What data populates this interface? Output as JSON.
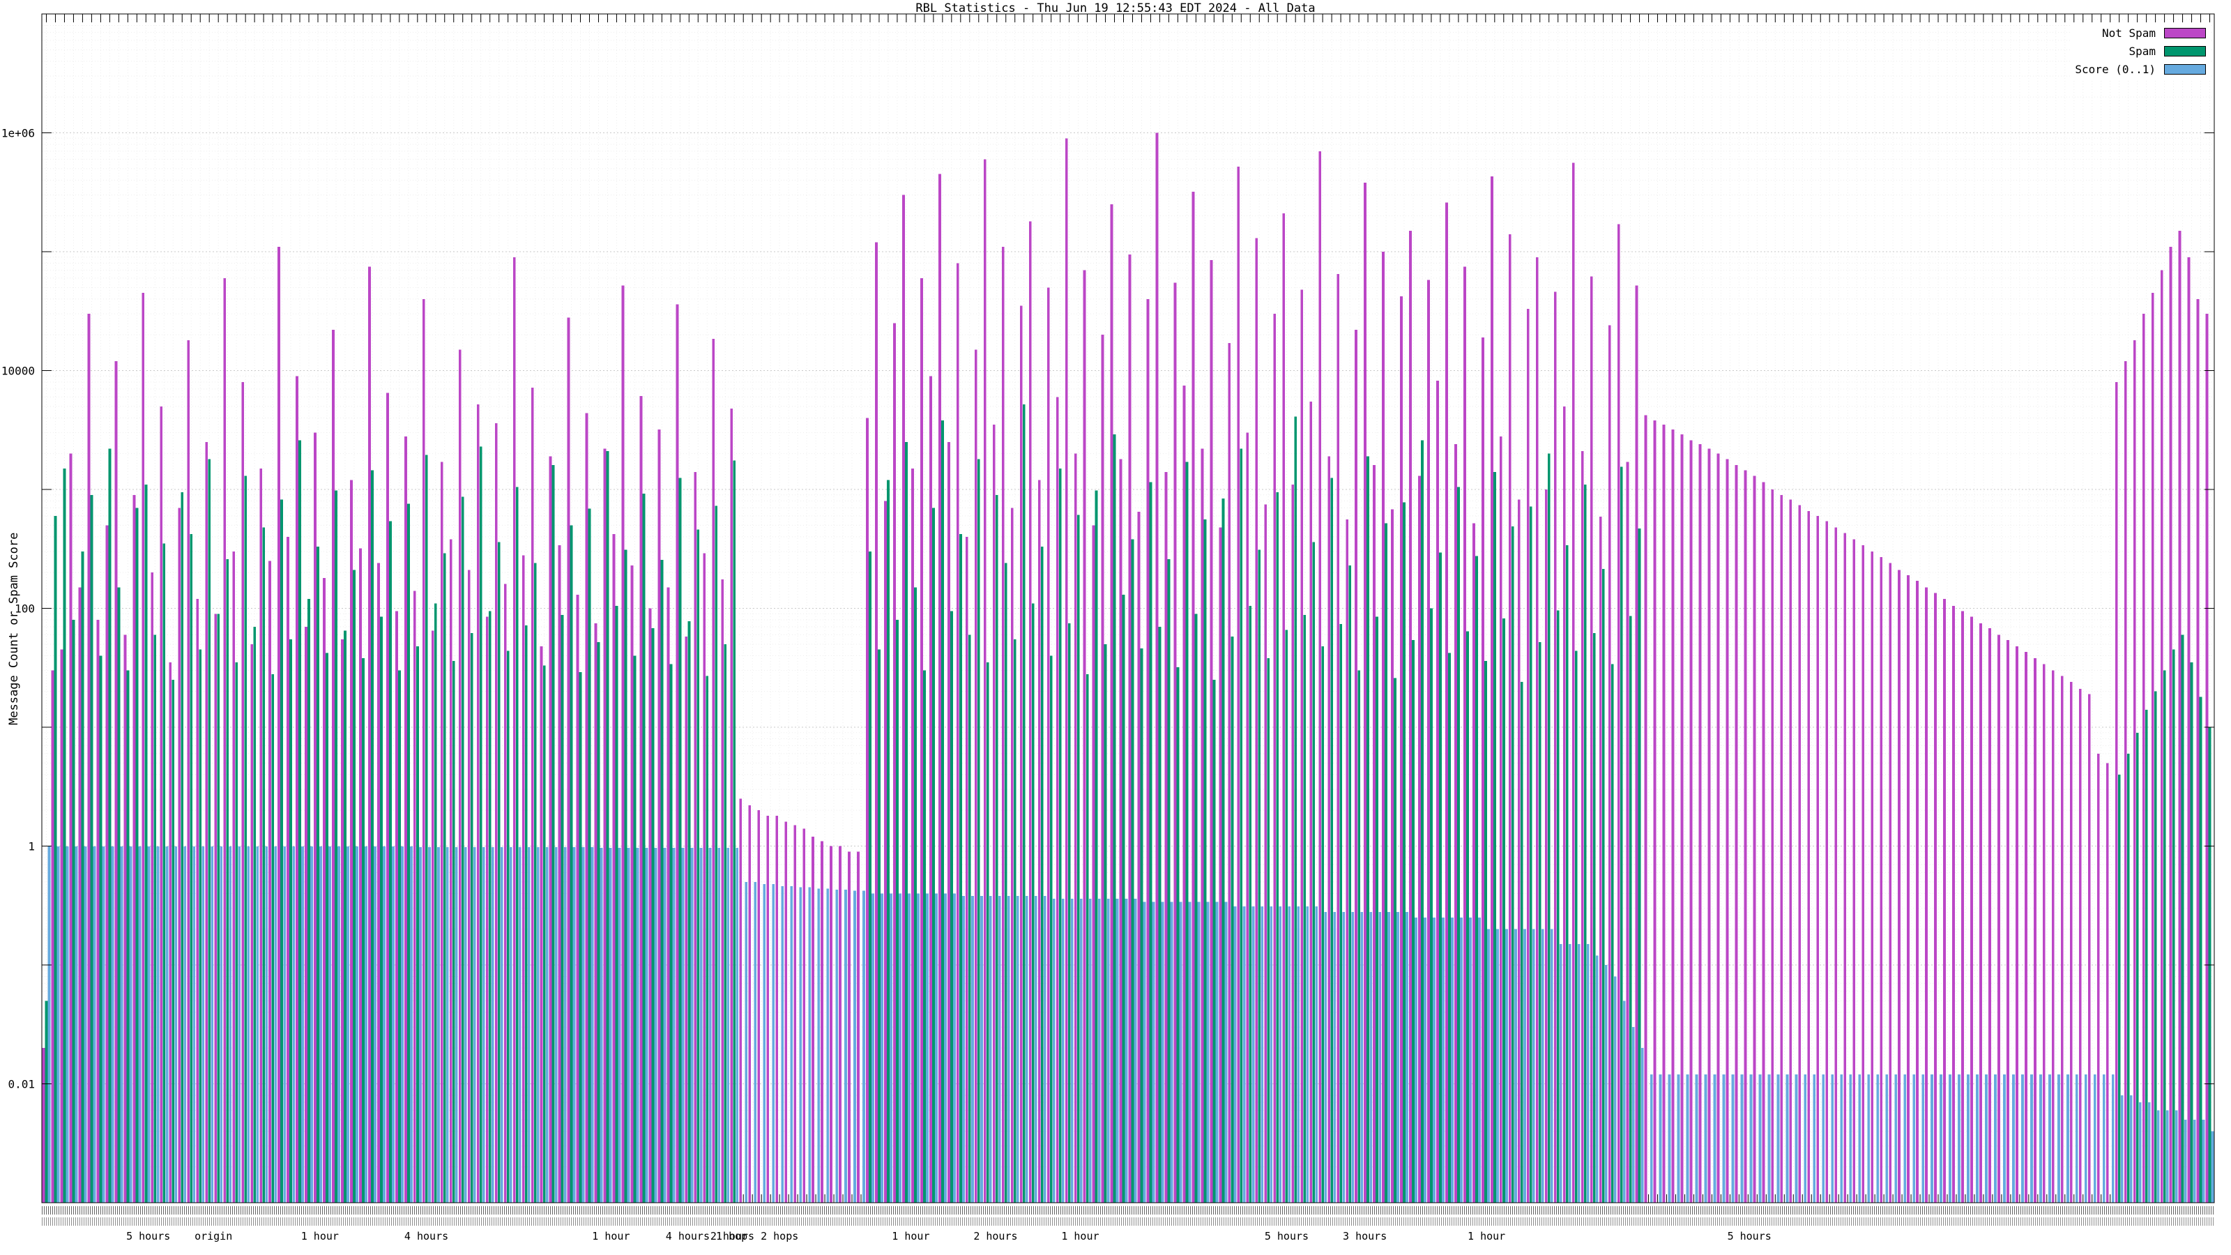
{
  "title": "RBL Statistics - Thu Jun 19 12:55:43 EDT 2024 - All Data",
  "y_axis": {
    "label": "Message Count or Spam Score",
    "ticks": [
      {
        "value": 1000000,
        "label": "1e+06"
      },
      {
        "value": 10000,
        "label": "10000"
      },
      {
        "value": 100,
        "label": "100"
      },
      {
        "value": 1,
        "label": "1"
      },
      {
        "value": 0.01,
        "label": "0.01"
      }
    ]
  },
  "legend": [
    {
      "label": "Not Spam",
      "color": "#bb46c6"
    },
    {
      "label": "Spam",
      "color": "#00966e"
    },
    {
      "label": "Score (0..1)",
      "color": "#66aadf"
    }
  ],
  "chart_data": {
    "type": "bar",
    "y_scale": "log",
    "ylim": [
      0.001,
      10000000
    ],
    "grid": true,
    "legend_position": "top-right",
    "title": "RBL Statistics - Thu Jun 19 12:55:43 EDT 2024 - All Data",
    "ylabel": "Message Count or Spam Score",
    "series": [
      {
        "name": "Not Spam",
        "color": "#bb46c6",
        "values": [
          0.02,
          30,
          45,
          2000,
          150,
          30000,
          80,
          500,
          12000,
          60,
          900,
          45000,
          200,
          5000,
          35,
          700,
          18000,
          120,
          2500,
          90,
          60000,
          300,
          8000,
          50,
          1500,
          250,
          110000,
          400,
          9000,
          70,
          3000,
          180,
          22000,
          55,
          1200,
          320,
          75000,
          240,
          6500,
          95,
          2800,
          140,
          40000,
          65,
          1700,
          380,
          15000,
          210,
          5200,
          85,
          3600,
          160,
          90000,
          280,
          7200,
          48,
          1900,
          340,
          28000,
          130,
          4400,
          75,
          2200,
          420,
          52000,
          230,
          6100,
          100,
          3200,
          150,
          36000,
          58,
          1400,
          290,
          18500,
          175,
          4800,
          2.5,
          2.2,
          2.0,
          1.8,
          1.8,
          1.6,
          1.5,
          1.4,
          1.2,
          1.1,
          1.0,
          1.0,
          0.9,
          0.9,
          4000,
          120000,
          800,
          25000,
          300000,
          1500,
          60000,
          9000,
          450000,
          2500,
          80000,
          400,
          15000,
          600000,
          3500,
          110000,
          700,
          35000,
          180000,
          1200,
          50000,
          6000,
          900000,
          2000,
          70000,
          500,
          20000,
          250000,
          1800,
          95000,
          650,
          40000,
          1000000,
          1400,
          55000,
          7500,
          320000,
          2200,
          85000,
          480,
          17000,
          520000,
          3000,
          130000,
          750,
          30000,
          210000,
          1100,
          48000,
          5500,
          700000,
          1900,
          65000,
          560,
          22000,
          380000,
          1600,
          100000,
          680,
          42000,
          150000,
          1300,
          58000,
          8200,
          260000,
          2400,
          75000,
          520,
          19000,
          430000,
          2800,
          140000,
          820,
          33000,
          90000,
          1000,
          46000,
          5000,
          560000,
          2100,
          62000,
          590,
          24000,
          170000,
          1700,
          52000,
          4200,
          3800,
          3500,
          3200,
          2900,
          2600,
          2400,
          2200,
          2000,
          1800,
          1600,
          1450,
          1300,
          1150,
          1000,
          900,
          820,
          740,
          660,
          600,
          540,
          480,
          430,
          380,
          340,
          300,
          270,
          240,
          210,
          190,
          170,
          150,
          135,
          120,
          105,
          95,
          85,
          75,
          68,
          60,
          54,
          48,
          43,
          38,
          34,
          30,
          27,
          24,
          21,
          19,
          6,
          5,
          8000,
          12000,
          18000,
          30000,
          45000,
          70000,
          110000,
          150000,
          90000,
          40000,
          30000
        ]
      },
      {
        "name": "Spam",
        "color": "#00966e",
        "values": [
          0.05,
          600,
          1500,
          80,
          300,
          900,
          40,
          2200,
          150,
          30,
          700,
          1100,
          60,
          350,
          25,
          950,
          420,
          45,
          1800,
          90,
          260,
          35,
          1300,
          70,
          480,
          28,
          820,
          55,
          2600,
          120,
          330,
          42,
          980,
          65,
          210,
          38,
          1450,
          85,
          540,
          30,
          760,
          48,
          1950,
          110,
          290,
          36,
          870,
          62,
          2300,
          95,
          360,
          44,
          1050,
          72,
          240,
          33,
          1600,
          88,
          500,
          29,
          690,
          52,
          2100,
          105,
          310,
          40,
          920,
          68,
          255,
          34,
          1250,
          78,
          460,
          27,
          730,
          50,
          1750,
          0,
          0,
          0,
          0,
          0,
          0,
          0,
          0,
          0,
          0,
          0,
          0,
          0,
          0,
          300,
          45,
          1200,
          80,
          2500,
          150,
          30,
          700,
          3800,
          95,
          420,
          60,
          1800,
          35,
          900,
          240,
          55,
          5200,
          110,
          330,
          40,
          1500,
          75,
          610,
          28,
          980,
          50,
          2900,
          130,
          380,
          46,
          1150,
          70,
          260,
          32,
          1700,
          90,
          560,
          25,
          840,
          58,
          2200,
          105,
          310,
          38,
          950,
          66,
          4100,
          88,
          360,
          48,
          1250,
          74,
          230,
          30,
          1900,
          85,
          520,
          26,
          780,
          54,
          2600,
          100,
          295,
          42,
          1050,
          64,
          275,
          36,
          1400,
          82,
          490,
          24,
          720,
          52,
          2000,
          96,
          340,
          44,
          1100,
          62,
          215,
          34,
          1550,
          86,
          470,
          0,
          0,
          0,
          0,
          0,
          0,
          0,
          0,
          0,
          0,
          0,
          0,
          0,
          0,
          0,
          0,
          0,
          0,
          0,
          0,
          0,
          0,
          0,
          0,
          0,
          0,
          0,
          0,
          0,
          0,
          0,
          0,
          0,
          0,
          0,
          0,
          0,
          0,
          0,
          0,
          0,
          0,
          0,
          0,
          0,
          0,
          0,
          0,
          0,
          0,
          0,
          0,
          4,
          6,
          9,
          14,
          20,
          30,
          45,
          60,
          35,
          18,
          10
        ]
      },
      {
        "name": "Score (0..1)",
        "color": "#66aadf",
        "values": [
          0.99,
          0.99,
          0.99,
          0.99,
          0.99,
          0.99,
          0.99,
          0.99,
          0.99,
          0.99,
          0.99,
          0.99,
          0.99,
          0.99,
          0.99,
          0.99,
          0.99,
          0.99,
          0.99,
          0.99,
          0.99,
          0.99,
          0.99,
          0.99,
          0.99,
          0.99,
          0.99,
          0.99,
          0.99,
          0.99,
          0.99,
          0.99,
          0.99,
          0.99,
          0.99,
          0.99,
          0.99,
          0.99,
          0.99,
          0.99,
          0.99,
          0.98,
          0.98,
          0.98,
          0.98,
          0.98,
          0.98,
          0.98,
          0.98,
          0.98,
          0.98,
          0.98,
          0.98,
          0.98,
          0.98,
          0.98,
          0.98,
          0.98,
          0.98,
          0.98,
          0.98,
          0.97,
          0.97,
          0.97,
          0.97,
          0.97,
          0.97,
          0.97,
          0.97,
          0.97,
          0.97,
          0.97,
          0.97,
          0.97,
          0.97,
          0.97,
          0.97,
          0.5,
          0.5,
          0.48,
          0.48,
          0.46,
          0.46,
          0.45,
          0.45,
          0.44,
          0.44,
          0.43,
          0.43,
          0.42,
          0.42,
          0.4,
          0.4,
          0.4,
          0.4,
          0.4,
          0.4,
          0.4,
          0.4,
          0.4,
          0.4,
          0.38,
          0.38,
          0.38,
          0.38,
          0.38,
          0.38,
          0.38,
          0.38,
          0.38,
          0.38,
          0.36,
          0.36,
          0.36,
          0.36,
          0.36,
          0.36,
          0.36,
          0.36,
          0.36,
          0.36,
          0.34,
          0.34,
          0.34,
          0.34,
          0.34,
          0.34,
          0.34,
          0.34,
          0.34,
          0.34,
          0.31,
          0.31,
          0.31,
          0.31,
          0.31,
          0.31,
          0.31,
          0.31,
          0.31,
          0.31,
          0.28,
          0.28,
          0.28,
          0.28,
          0.28,
          0.28,
          0.28,
          0.28,
          0.28,
          0.28,
          0.25,
          0.25,
          0.25,
          0.25,
          0.25,
          0.25,
          0.25,
          0.25,
          0.2,
          0.2,
          0.2,
          0.2,
          0.2,
          0.2,
          0.2,
          0.2,
          0.15,
          0.15,
          0.15,
          0.15,
          0.12,
          0.1,
          0.08,
          0.05,
          0.03,
          0.02,
          0.012,
          0.012,
          0.012,
          0.012,
          0.012,
          0.012,
          0.012,
          0.012,
          0.012,
          0.012,
          0.012,
          0.012,
          0.012,
          0.012,
          0.012,
          0.012,
          0.012,
          0.012,
          0.012,
          0.012,
          0.012,
          0.012,
          0.012,
          0.012,
          0.012,
          0.012,
          0.012,
          0.012,
          0.012,
          0.012,
          0.012,
          0.012,
          0.012,
          0.012,
          0.012,
          0.012,
          0.012,
          0.012,
          0.012,
          0.012,
          0.012,
          0.012,
          0.012,
          0.012,
          0.012,
          0.012,
          0.012,
          0.012,
          0.012,
          0.012,
          0.012,
          0.012,
          0.008,
          0.008,
          0.007,
          0.007,
          0.006,
          0.006,
          0.006,
          0.005,
          0.005,
          0.005,
          0.004
        ]
      }
    ],
    "x_axis_fragments": [
      {
        "text": "5 hours",
        "pos": 0.049
      },
      {
        "text": "origin",
        "pos": 0.079
      },
      {
        "text": "1 hour",
        "pos": 0.128
      },
      {
        "text": "4 hours",
        "pos": 0.177
      },
      {
        "text": "1 hour",
        "pos": 0.262
      },
      {
        "text": "4 hours 1 hop",
        "pos": 0.306
      },
      {
        "text": "2 hours 2 hops",
        "pos": 0.328
      },
      {
        "text": "1 hour",
        "pos": 0.4
      },
      {
        "text": "2 hours",
        "pos": 0.439
      },
      {
        "text": "1 hour",
        "pos": 0.478
      },
      {
        "text": "5 hours",
        "pos": 0.573
      },
      {
        "text": "3 hours",
        "pos": 0.609
      },
      {
        "text": "1 hour",
        "pos": 0.665
      },
      {
        "text": "5 hours",
        "pos": 0.786
      }
    ]
  }
}
